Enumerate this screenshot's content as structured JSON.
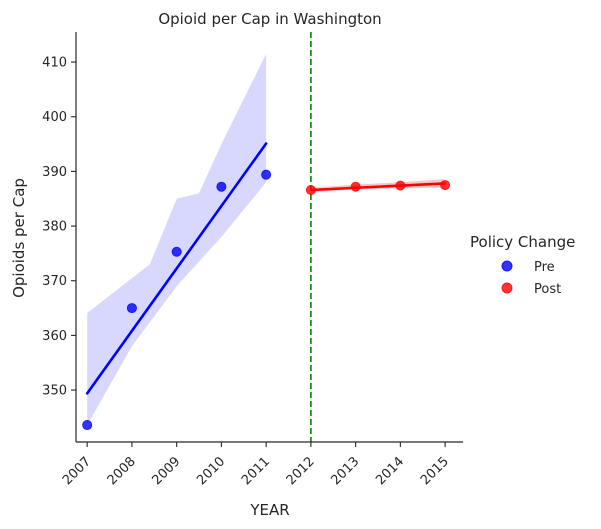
{
  "chart_data": {
    "type": "scatter",
    "title": "Opioid per Cap in Washington",
    "xlabel": "YEAR",
    "ylabel": "Opioids per Cap",
    "xlim": [
      2006.75,
      2015.4
    ],
    "ylim": [
      340.5,
      415.5
    ],
    "x_ticks": [
      "2007",
      "2008",
      "2009",
      "2010",
      "2011",
      "2012",
      "2013",
      "2014",
      "2015"
    ],
    "y_ticks": [
      "350",
      "360",
      "370",
      "380",
      "390",
      "400",
      "410"
    ],
    "grid": false,
    "legend": {
      "title": "Policy Change",
      "placement": "center-right"
    },
    "policy_line": {
      "x": 2012,
      "color": "#008000",
      "style": "dashed"
    },
    "series": [
      {
        "name": "Pre",
        "color": "#0000ff",
        "band_color": "#d8d8ff",
        "x": [
          2007,
          2008,
          2009,
          2010,
          2011
        ],
        "y": [
          343.6,
          365.0,
          375.3,
          387.2,
          389.4
        ],
        "fit": {
          "x": [
            2007,
            2011
          ],
          "y": [
            349.4,
            395.1
          ]
        },
        "ci_upper": [
          [
            2007,
            364.1
          ],
          [
            2008.4,
            373.0
          ],
          [
            2009,
            385.0
          ],
          [
            2009.5,
            386.0
          ],
          [
            2010,
            395.0
          ],
          [
            2011,
            411.5
          ]
        ],
        "ci_lower": [
          [
            2011,
            388.0
          ],
          [
            2010,
            378.0
          ],
          [
            2009,
            369.0
          ],
          [
            2008,
            358.0
          ],
          [
            2007,
            343.6
          ]
        ]
      },
      {
        "name": "Post",
        "color": "#ff0000",
        "band_color": "#f7c6c6",
        "x": [
          2012,
          2013,
          2014,
          2015
        ],
        "y": [
          386.6,
          387.2,
          387.4,
          387.5
        ],
        "fit": {
          "x": [
            2012,
            2015
          ],
          "y": [
            386.6,
            387.8
          ]
        },
        "ci_upper": [
          [
            2012,
            387.0
          ],
          [
            2013,
            387.6
          ],
          [
            2014,
            388.0
          ],
          [
            2015,
            388.6
          ]
        ],
        "ci_lower": [
          [
            2015,
            387.0
          ],
          [
            2014,
            386.9
          ],
          [
            2013,
            386.7
          ],
          [
            2012,
            386.2
          ]
        ]
      }
    ]
  }
}
